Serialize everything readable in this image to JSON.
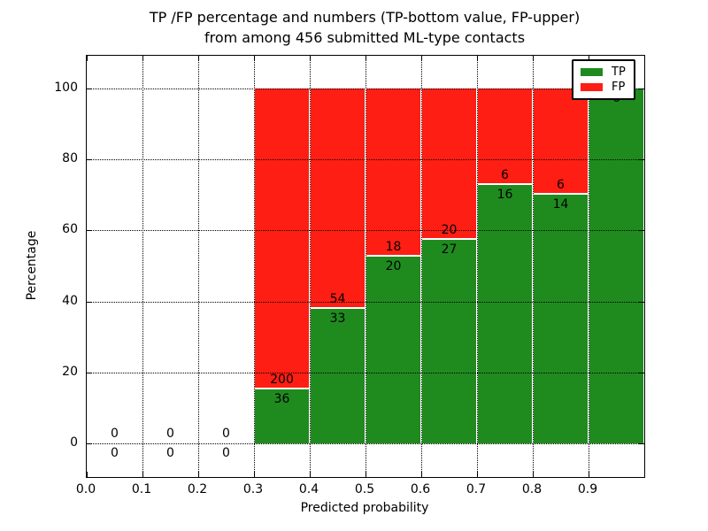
{
  "title": {
    "line1": "TP /FP percentage and numbers (TP-bottom value, FP-upper)",
    "line2": "from among 456 submitted ML-type contacts"
  },
  "chart_data": {
    "type": "bar",
    "stacked": true,
    "title": "TP /FP percentage and numbers (TP-bottom value, FP-upper) from among 456 submitted ML-type contacts",
    "xlabel": "Predicted probability",
    "ylabel": "Percentage",
    "total_contacts": 456,
    "bin_width": 0.1,
    "bins": [
      {
        "start": 0.0,
        "tp": 0,
        "fp": 0
      },
      {
        "start": 0.1,
        "tp": 0,
        "fp": 0
      },
      {
        "start": 0.2,
        "tp": 0,
        "fp": 0
      },
      {
        "start": 0.3,
        "tp": 36,
        "fp": 200
      },
      {
        "start": 0.4,
        "tp": 33,
        "fp": 54
      },
      {
        "start": 0.5,
        "tp": 20,
        "fp": 18
      },
      {
        "start": 0.6,
        "tp": 27,
        "fp": 20
      },
      {
        "start": 0.7,
        "tp": 16,
        "fp": 6
      },
      {
        "start": 0.8,
        "tp": 14,
        "fp": 6
      },
      {
        "start": 0.9,
        "tp": 6,
        "fp": 0
      }
    ],
    "series": [
      {
        "name": "TP",
        "color": "#1f8b1f"
      },
      {
        "name": "FP",
        "color": "#ff1e13"
      }
    ],
    "x_ticks": [
      "0.0",
      "0.1",
      "0.2",
      "0.3",
      "0.4",
      "0.5",
      "0.6",
      "0.7",
      "0.8",
      "0.9"
    ],
    "x_tick_values": [
      0.0,
      0.1,
      0.2,
      0.3,
      0.4,
      0.5,
      0.6,
      0.7,
      0.8,
      0.9
    ],
    "y_ticks": [
      0,
      20,
      40,
      60,
      80,
      100
    ],
    "xlim": [
      0.0,
      1.0
    ],
    "ylim": [
      -9.5,
      109.2
    ],
    "grid": true,
    "legend": {
      "position": "upper right",
      "entries": [
        {
          "label": "TP",
          "color": "#1f8b1f"
        },
        {
          "label": "FP",
          "color": "#ff1e13"
        }
      ]
    }
  }
}
